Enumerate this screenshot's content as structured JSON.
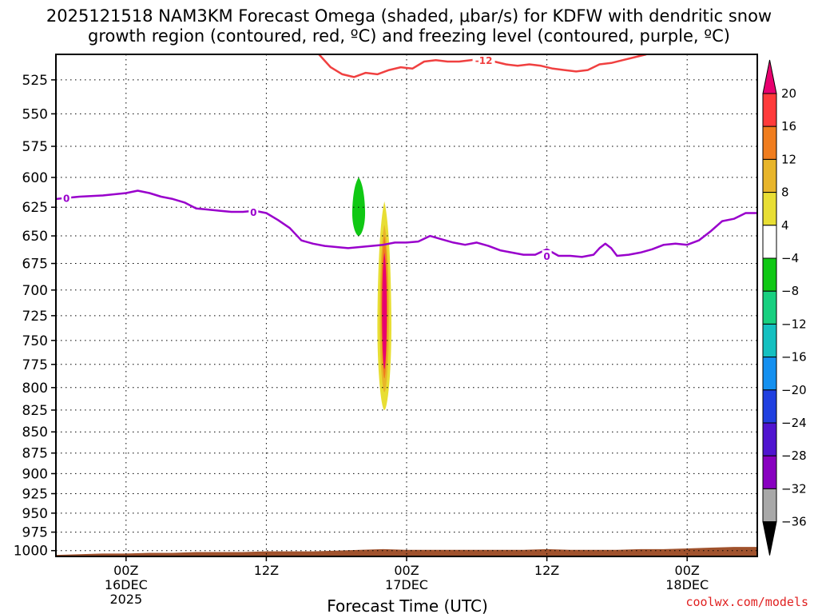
{
  "chart_data": {
    "type": "time-height-contour",
    "title_line1": "2025121518 NAM3KM Forecast Omega (shaded, μbar/s) for KDFW with dendritic snow",
    "title_line2": "growth region (contoured, red, ºC) and freezing level (contoured, purple, ºC)",
    "xlabel": "Forecast Time (UTC)",
    "credit": "coolwx.com/models",
    "x_hours_range": [
      -6,
      54
    ],
    "y_pressure_range": [
      507,
      1008
    ],
    "y_ticks": [
      525,
      550,
      575,
      600,
      625,
      650,
      675,
      700,
      725,
      750,
      775,
      800,
      825,
      850,
      875,
      900,
      925,
      950,
      975,
      1000
    ],
    "x_ticks": [
      {
        "hour": 0,
        "label1": "00Z",
        "label2": "16DEC",
        "label3": "2025"
      },
      {
        "hour": 12,
        "label1": "12Z",
        "label2": "",
        "label3": ""
      },
      {
        "hour": 24,
        "label1": "00Z",
        "label2": "17DEC",
        "label3": ""
      },
      {
        "hour": 36,
        "label1": "12Z",
        "label2": "",
        "label3": ""
      },
      {
        "hour": 48,
        "label1": "00Z",
        "label2": "18DEC",
        "label3": ""
      }
    ],
    "colorbar": {
      "levels": [
        20,
        16,
        12,
        8,
        4,
        -4,
        -8,
        -12,
        -16,
        -20,
        -24,
        -28,
        -32,
        -36
      ],
      "colors": [
        "#ff3a3a",
        "#f07d1e",
        "#e8b52a",
        "#e8de34",
        "#ffffff",
        "#10c814",
        "#18d080",
        "#14c0c0",
        "#1490f0",
        "#2040e0",
        "#5014d0",
        "#8800c0",
        "#a8a8a8"
      ],
      "top_arrow": "#e8006f",
      "bottom_arrow": "#000000"
    },
    "freezing_level": {
      "label": "0",
      "color": "#9900cc",
      "points": [
        [
          -6,
          618
        ],
        [
          -4,
          616
        ],
        [
          -2,
          615
        ],
        [
          0,
          613
        ],
        [
          1,
          611
        ],
        [
          2,
          613
        ],
        [
          3,
          616
        ],
        [
          4,
          618
        ],
        [
          5,
          621
        ],
        [
          6,
          626
        ],
        [
          7,
          627
        ],
        [
          8,
          628
        ],
        [
          9,
          629
        ],
        [
          10,
          629
        ],
        [
          11,
          628
        ],
        [
          12,
          630
        ],
        [
          13,
          636
        ],
        [
          14,
          643
        ],
        [
          15,
          654
        ],
        [
          16,
          657
        ],
        [
          17,
          659
        ],
        [
          18,
          660
        ],
        [
          19,
          661
        ],
        [
          20,
          660
        ],
        [
          21,
          659
        ],
        [
          22,
          658
        ],
        [
          23,
          656
        ],
        [
          24,
          656
        ],
        [
          25,
          655
        ],
        [
          26,
          650
        ],
        [
          27,
          653
        ],
        [
          28,
          656
        ],
        [
          29,
          658
        ],
        [
          30,
          656
        ],
        [
          31,
          659
        ],
        [
          32,
          663
        ],
        [
          33,
          665
        ],
        [
          34,
          667
        ],
        [
          35,
          667
        ],
        [
          36,
          662
        ],
        [
          37,
          668
        ],
        [
          38,
          668
        ],
        [
          39,
          669
        ],
        [
          40,
          667
        ],
        [
          40.5,
          661
        ],
        [
          41,
          657
        ],
        [
          41.5,
          661
        ],
        [
          42,
          668
        ],
        [
          43,
          667
        ],
        [
          44,
          665
        ],
        [
          45,
          662
        ],
        [
          46,
          658
        ],
        [
          47,
          657
        ],
        [
          48,
          658
        ],
        [
          49,
          654
        ],
        [
          50,
          646
        ],
        [
          51,
          637
        ],
        [
          52,
          635
        ],
        [
          53,
          630
        ],
        [
          54,
          630
        ]
      ]
    },
    "dgz_minus12": {
      "label": "-12",
      "color": "#f04040",
      "points": [
        [
          16.5,
          507
        ],
        [
          17.5,
          516
        ],
        [
          18.5,
          521
        ],
        [
          19.5,
          523
        ],
        [
          20.5,
          520
        ],
        [
          21.5,
          521
        ],
        [
          22.5,
          518
        ],
        [
          23.5,
          516
        ],
        [
          24.5,
          517
        ],
        [
          25.5,
          512
        ],
        [
          26.5,
          511
        ],
        [
          27.5,
          512
        ],
        [
          28.5,
          512
        ],
        [
          29.5,
          511
        ],
        [
          30.5,
          510
        ],
        [
          31.5,
          512
        ],
        [
          32.5,
          514
        ],
        [
          33.5,
          515
        ],
        [
          34.5,
          514
        ],
        [
          35.5,
          515
        ],
        [
          36.5,
          517
        ],
        [
          37.5,
          518
        ],
        [
          38.5,
          519
        ],
        [
          39.5,
          518
        ],
        [
          40.5,
          514
        ],
        [
          41.5,
          513
        ],
        [
          42.5,
          511
        ],
        [
          43.5,
          509
        ],
        [
          44.5,
          507
        ]
      ]
    },
    "omega_features": [
      {
        "level": -4,
        "t_center": 20.7,
        "p_center": 620,
        "half_width_h": 1.45,
        "p_top": 524,
        "p_bottom": 721
      },
      {
        "level": -8,
        "t_center": 19.9,
        "p_center": 630,
        "half_width_h": 0.55,
        "p_top": 600,
        "p_bottom": 650
      },
      {
        "level": 4,
        "t_center": 22.1,
        "p_center": 735,
        "half_width_h": 0.85,
        "p_top": 608,
        "p_bottom": 843
      },
      {
        "level": 8,
        "t_center": 22.1,
        "p_center": 735,
        "half_width_h": 0.6,
        "p_top": 620,
        "p_bottom": 825
      },
      {
        "level": 12,
        "t_center": 22.1,
        "p_center": 725,
        "half_width_h": 0.4,
        "p_top": 640,
        "p_bottom": 805
      },
      {
        "level": 16,
        "t_center": 22.1,
        "p_center": 710,
        "half_width_h": 0.27,
        "p_top": 650,
        "p_bottom": 790
      },
      {
        "level": 20,
        "t_center": 22.1,
        "p_center": 720,
        "half_width_h": 0.2,
        "p_top": 665,
        "p_bottom": 780
      },
      {
        "level": 4,
        "t_center": 12.95,
        "p_center": 880,
        "half_width_h": 0.25,
        "p_top": 818,
        "p_bottom": 938
      },
      {
        "level": 4,
        "t_center": 18.8,
        "p_center": 530,
        "half_width_h": 0.14,
        "p_top": 511,
        "p_bottom": 549
      },
      {
        "level": 4,
        "t_center": 26.3,
        "p_center": 645,
        "half_width_h": 0.12,
        "p_top": 597,
        "p_bottom": 692
      },
      {
        "level": 4,
        "t_center": 28.3,
        "p_center": 628,
        "half_width_h": 0.28,
        "p_top": 595,
        "p_bottom": 660
      },
      {
        "level": 4,
        "t_center": 36.0,
        "p_center": 683,
        "half_width_h": 0.15,
        "p_top": 655,
        "p_bottom": 721
      },
      {
        "level": 4,
        "t_center": 42.1,
        "p_center": 540,
        "half_width_h": 0.16,
        "p_top": 510,
        "p_bottom": 567
      },
      {
        "level": -4,
        "t_center": 42.1,
        "p_center": 655,
        "half_width_h": 0.42,
        "p_top": 623,
        "p_bottom": 690
      },
      {
        "level": 4,
        "t_center": 42.1,
        "p_center": 845,
        "half_width_h": 0.3,
        "p_top": 803,
        "p_bottom": 890
      },
      {
        "level": 4,
        "t_center": 54.0,
        "p_center": 800,
        "half_width_h": 0.5,
        "p_top": 740,
        "p_bottom": 868
      }
    ],
    "terrain": {
      "color": "#a0522d",
      "points": [
        [
          -6,
          1006
        ],
        [
          -4,
          1005
        ],
        [
          -2,
          1004
        ],
        [
          0,
          1004
        ],
        [
          2,
          1003
        ],
        [
          4,
          1003
        ],
        [
          6,
          1002
        ],
        [
          8,
          1002
        ],
        [
          10,
          1002
        ],
        [
          12,
          1001
        ],
        [
          14,
          1001
        ],
        [
          16,
          1001
        ],
        [
          18,
          1000
        ],
        [
          20,
          999
        ],
        [
          22,
          998
        ],
        [
          24,
          999
        ],
        [
          26,
          999
        ],
        [
          28,
          999
        ],
        [
          30,
          999
        ],
        [
          32,
          999
        ],
        [
          34,
          999
        ],
        [
          36,
          998
        ],
        [
          38,
          999
        ],
        [
          40,
          999
        ],
        [
          42,
          999
        ],
        [
          44,
          998
        ],
        [
          46,
          998
        ],
        [
          48,
          997
        ],
        [
          50,
          996
        ],
        [
          52,
          995
        ],
        [
          54,
          995
        ]
      ]
    }
  }
}
